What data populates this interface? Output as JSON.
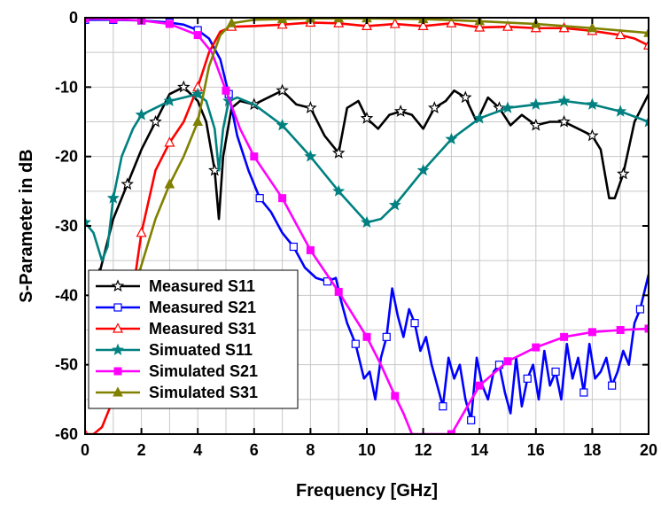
{
  "chart_data": {
    "type": "line",
    "xlabel": "Frequency [GHz]",
    "ylabel": "S-Parameter in dB",
    "xlim": [
      0,
      20
    ],
    "ylim": [
      -60,
      0
    ],
    "xticks": [
      0,
      2,
      4,
      6,
      8,
      10,
      12,
      14,
      16,
      18,
      20
    ],
    "yticks": [
      0,
      -10,
      -20,
      -30,
      -40,
      -50,
      -60
    ],
    "grid": true,
    "legend_position": "bottom-left",
    "series": [
      {
        "name": "Measured S11",
        "color": "#000000",
        "marker": "star",
        "x": [
          0.5,
          1.0,
          1.5,
          2.0,
          2.5,
          3.0,
          3.5,
          4.0,
          4.3,
          4.6,
          4.75,
          4.9,
          5.2,
          5.5,
          6.0,
          6.5,
          7.0,
          7.5,
          8.0,
          8.5,
          9.0,
          9.3,
          9.7,
          10.0,
          10.4,
          10.8,
          11.2,
          11.6,
          12.0,
          12.4,
          12.8,
          13.1,
          13.5,
          13.9,
          14.3,
          14.7,
          15.1,
          15.5,
          16.0,
          16.5,
          17.0,
          17.5,
          18.0,
          18.3,
          18.6,
          18.8,
          19.1,
          19.5,
          20.0
        ],
        "y": [
          -37,
          -29,
          -24,
          -19,
          -15,
          -11,
          -10,
          -12,
          -15,
          -22,
          -29,
          -20,
          -13,
          -12,
          -12.5,
          -11.5,
          -10.5,
          -12.5,
          -13,
          -17,
          -19.5,
          -13,
          -12,
          -14.5,
          -16,
          -14,
          -13.5,
          -14,
          -16,
          -13,
          -12,
          -10.5,
          -11.5,
          -15,
          -11.5,
          -13,
          -15.5,
          -14,
          -15.5,
          -15,
          -15,
          -16,
          -17,
          -19,
          -26,
          -26,
          -22.5,
          -15,
          -11
        ]
      },
      {
        "name": "Measured S21",
        "color": "#0000ff",
        "marker": "open-square",
        "x": [
          0.0,
          1.0,
          2.0,
          3.0,
          3.5,
          4.0,
          4.4,
          4.8,
          5.1,
          5.4,
          5.8,
          6.2,
          6.6,
          7.0,
          7.4,
          7.8,
          8.2,
          8.6,
          8.9,
          9.1,
          9.3,
          9.6,
          9.9,
          10.1,
          10.3,
          10.5,
          10.7,
          10.9,
          11.1,
          11.3,
          11.5,
          11.7,
          11.9,
          12.1,
          12.3,
          12.5,
          12.7,
          12.9,
          13.1,
          13.3,
          13.5,
          13.7,
          13.9,
          14.1,
          14.3,
          14.5,
          14.7,
          14.9,
          15.1,
          15.3,
          15.5,
          15.7,
          15.9,
          16.1,
          16.3,
          16.5,
          16.7,
          16.9,
          17.1,
          17.3,
          17.5,
          17.7,
          17.9,
          18.1,
          18.3,
          18.5,
          18.7,
          18.9,
          19.1,
          19.3,
          19.5,
          19.7,
          20.0
        ],
        "y": [
          -0.3,
          -0.3,
          -0.4,
          -0.7,
          -1.0,
          -1.8,
          -3.0,
          -6.0,
          -11.0,
          -17.0,
          -22.0,
          -26.0,
          -28.0,
          -31.0,
          -33.0,
          -36.0,
          -37.5,
          -38.0,
          -37.5,
          -41.0,
          -44.0,
          -47.0,
          -52.0,
          -51.0,
          -55.0,
          -49.0,
          -46.0,
          -39.0,
          -43.0,
          -46.0,
          -42.0,
          -44.0,
          -48.0,
          -46.0,
          -50.0,
          -53.0,
          -56.0,
          -49.0,
          -52.0,
          -50.0,
          -55.0,
          -58.0,
          -49.0,
          -53.0,
          -55.0,
          -51.0,
          -50.0,
          -54.0,
          -57.0,
          -49.0,
          -56.0,
          -52.0,
          -50.0,
          -55.0,
          -48.0,
          -53.0,
          -51.0,
          -55.0,
          -47.0,
          -52.0,
          -49.0,
          -54.0,
          -47.0,
          -52.0,
          -51.0,
          -49.0,
          -53.0,
          -51.0,
          -48.0,
          -50.0,
          -44.0,
          -42.0,
          -37.0
        ]
      },
      {
        "name": "Measured S31",
        "color": "#ff0000",
        "marker": "open-triangle",
        "x": [
          0.0,
          0.3,
          0.6,
          1.0,
          1.5,
          2.0,
          2.5,
          3.0,
          3.5,
          4.0,
          4.4,
          4.8,
          5.2,
          6.0,
          7.0,
          8.0,
          9.0,
          10.0,
          11.0,
          12.0,
          13.0,
          14.0,
          15.0,
          16.0,
          17.0,
          18.0,
          19.0,
          19.5,
          20.0
        ],
        "y": [
          -60.0,
          -60.0,
          -59.0,
          -55.0,
          -45.0,
          -31.0,
          -22.0,
          -18.0,
          -15.0,
          -10.0,
          -5.0,
          -2.0,
          -1.3,
          -1.2,
          -1.0,
          -0.7,
          -0.8,
          -1.2,
          -0.9,
          -1.2,
          -0.8,
          -1.4,
          -1.3,
          -1.5,
          -1.5,
          -1.9,
          -2.5,
          -3.0,
          -4.0
        ]
      },
      {
        "name": "Simuated S11",
        "color": "#008080",
        "marker": "star-filled",
        "x": [
          0.0,
          0.3,
          0.6,
          0.8,
          1.0,
          1.3,
          1.7,
          2.0,
          2.5,
          3.0,
          3.5,
          4.0,
          4.3,
          4.6,
          4.75,
          4.9,
          5.1,
          5.4,
          6.0,
          7.0,
          8.0,
          9.0,
          10.0,
          10.5,
          11.0,
          12.0,
          13.0,
          14.0,
          15.0,
          16.0,
          17.0,
          18.0,
          19.0,
          20.0
        ],
        "y": [
          -29.5,
          -31.0,
          -35.0,
          -33.0,
          -26.0,
          -20.0,
          -16.0,
          -14.0,
          -13.0,
          -12.0,
          -11.5,
          -11.0,
          -12.0,
          -16.0,
          -22.0,
          -16.0,
          -12.0,
          -11.5,
          -12.5,
          -15.5,
          -20.0,
          -25.0,
          -29.5,
          -29.0,
          -27.0,
          -22.0,
          -17.5,
          -14.5,
          -13.0,
          -12.5,
          -12.0,
          -12.5,
          -13.5,
          -15.0
        ]
      },
      {
        "name": "Simulated S21",
        "color": "#ff00ff",
        "marker": "filled-square",
        "x": [
          0.0,
          1.0,
          2.0,
          3.0,
          4.0,
          4.5,
          5.0,
          5.5,
          6.0,
          7.0,
          8.0,
          9.0,
          10.0,
          10.5,
          11.0,
          11.3,
          11.6,
          13.0,
          13.5,
          14.0,
          15.0,
          16.0,
          17.0,
          18.0,
          19.0,
          20.0
        ],
        "y": [
          -0.1,
          -0.2,
          -0.4,
          -0.9,
          -2.5,
          -5.0,
          -10.5,
          -16.0,
          -20.0,
          -26.0,
          -33.5,
          -39.5,
          -46.0,
          -50.0,
          -54.5,
          -57.0,
          -60.0,
          -60.0,
          -56.5,
          -53.0,
          -49.5,
          -47.5,
          -46.0,
          -45.3,
          -45.0,
          -44.8
        ]
      },
      {
        "name": "Simulated S31",
        "color": "#808000",
        "marker": "filled-triangle",
        "x": [
          1.9,
          2.2,
          2.5,
          3.0,
          3.5,
          4.0,
          4.4,
          4.8,
          5.2,
          6.0,
          7.0,
          8.0,
          9.0,
          10.0,
          12.0,
          14.0,
          16.0,
          18.0,
          20.0
        ],
        "y": [
          -37.0,
          -33.0,
          -29.0,
          -24.0,
          -20.0,
          -15.0,
          -7.0,
          -2.5,
          -0.8,
          -0.3,
          -0.2,
          -0.1,
          -0.1,
          -0.1,
          -0.2,
          -0.5,
          -0.9,
          -1.5,
          -2.2
        ]
      }
    ]
  }
}
